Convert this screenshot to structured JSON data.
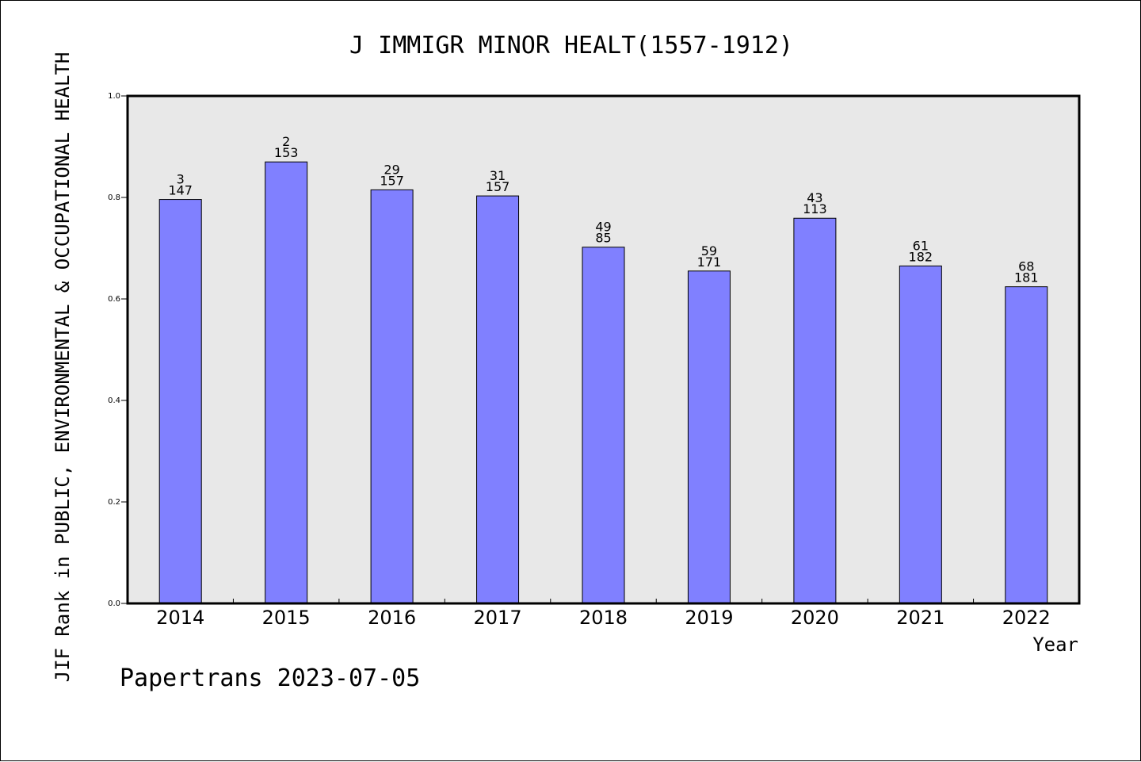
{
  "chart_data": {
    "type": "bar",
    "title": "J IMMIGR MINOR HEALT(1557-1912)",
    "ylabel": "JIF Rank in PUBLIC, ENVIRONMENTAL & OCCUPATIONAL HEALTH",
    "xlabel": "Year",
    "footer": "Papertrans 2023-07-05",
    "ylim": [
      0,
      1.0
    ],
    "yticks": [
      "0.0",
      "0.2",
      "0.4",
      "0.6",
      "0.8",
      "1.0"
    ],
    "grid": false,
    "categories": [
      "2014",
      "2015",
      "2016",
      "2017",
      "2018",
      "2019",
      "2020",
      "2021",
      "2022"
    ],
    "values": [
      0.796,
      0.87,
      0.815,
      0.803,
      0.702,
      0.655,
      0.759,
      0.665,
      0.624
    ],
    "rank": [
      "3",
      "2",
      "29",
      "31",
      "49",
      "59",
      "43",
      "61",
      "68"
    ],
    "total": [
      "147",
      "153",
      "157",
      "157",
      "85",
      "171",
      "113",
      "182",
      "181"
    ],
    "colors": {
      "bar": "#8080ff",
      "plot_background": "#e8e8e8",
      "axis": "#000000"
    }
  }
}
